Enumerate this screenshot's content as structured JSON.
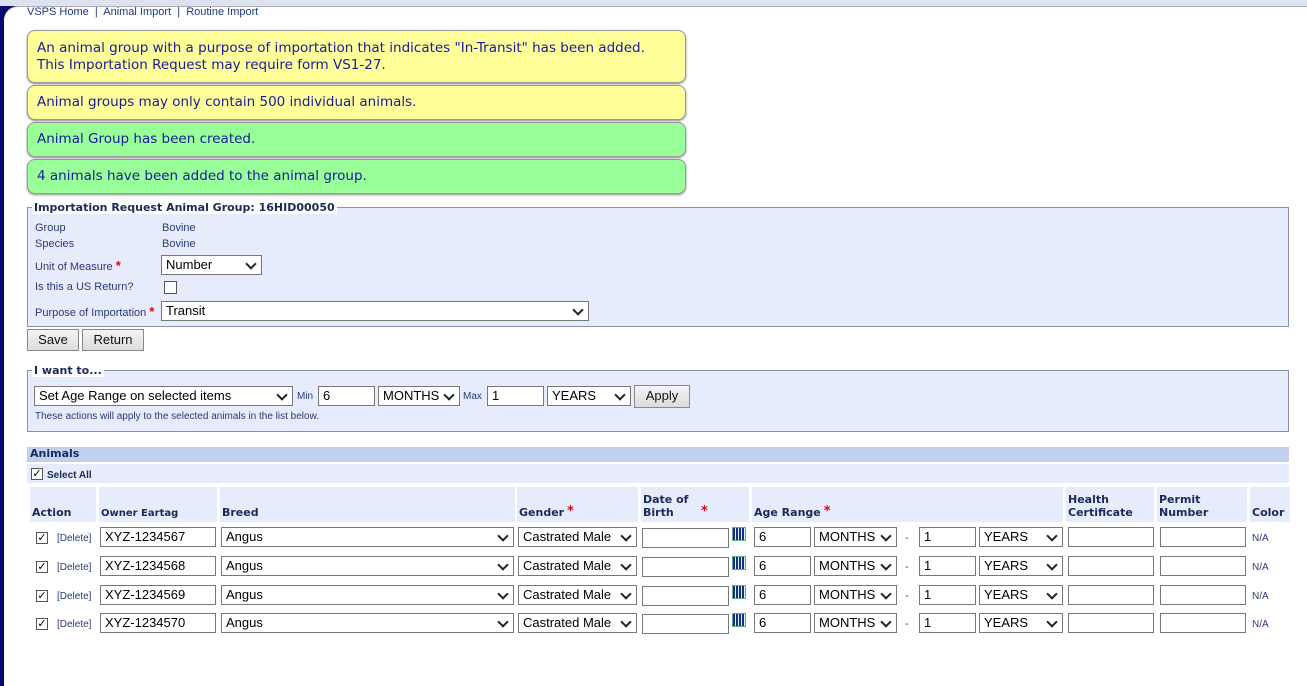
{
  "breadcrumb": [
    "VSPS Home",
    "Animal Import",
    "Routine Import"
  ],
  "messages": [
    {
      "type": "warning",
      "lines": [
        "An animal group with a purpose of importation that indicates \"In-Transit\" has been added.",
        "This Importation Request may require form VS1-27."
      ]
    },
    {
      "type": "warning",
      "lines": [
        "Animal groups may only contain 500 individual animals."
      ]
    },
    {
      "type": "success",
      "lines": [
        "Animal Group has been created."
      ]
    },
    {
      "type": "success",
      "lines": [
        "4 animals have been added to the animal group."
      ]
    }
  ],
  "group": {
    "legend": "Importation Request Animal Group: 16HID00050",
    "group_label": "Group",
    "group_value": "Bovine",
    "species_label": "Species",
    "species_value": "Bovine",
    "unit_label": "Unit of Measure",
    "unit_value": "Number",
    "us_return_label": "Is this a US Return?",
    "us_return_checked": false,
    "purpose_label": "Purpose of Importation",
    "purpose_value": "Transit"
  },
  "buttons": {
    "save": "Save",
    "return": "Return",
    "apply": "Apply"
  },
  "actions": {
    "legend": "I want to...",
    "action_value": "Set Age Range on selected items",
    "min_label": "Min",
    "min_value": "6",
    "min_unit": "MONTHS",
    "max_label": "Max",
    "max_value": "1",
    "max_unit": "YEARS",
    "note": "These actions will apply to the selected animals in the list below."
  },
  "animals": {
    "title": "Animals",
    "select_all": "Select All",
    "columns": [
      "Action",
      "Owner Eartag",
      "Breed",
      "Gender",
      "Date of Birth",
      "Age Range",
      "Health Certificate",
      "Permit Number",
      "Color"
    ],
    "delete_label": "[Delete]",
    "rows": [
      {
        "checked": true,
        "eartag": "XYZ-1234567",
        "breed": "Angus",
        "gender": "Castrated Male",
        "dob": "",
        "min": "6",
        "min_unit": "MONTHS",
        "max": "1",
        "max_unit": "YEARS",
        "health": "",
        "permit": "",
        "color": "N/A"
      },
      {
        "checked": true,
        "eartag": "XYZ-1234568",
        "breed": "Angus",
        "gender": "Castrated Male",
        "dob": "",
        "min": "6",
        "min_unit": "MONTHS",
        "max": "1",
        "max_unit": "YEARS",
        "health": "",
        "permit": "",
        "color": "N/A"
      },
      {
        "checked": true,
        "eartag": "XYZ-1234569",
        "breed": "Angus",
        "gender": "Castrated Male",
        "dob": "",
        "min": "6",
        "min_unit": "MONTHS",
        "max": "1",
        "max_unit": "YEARS",
        "health": "",
        "permit": "",
        "color": "N/A"
      },
      {
        "checked": true,
        "eartag": "XYZ-1234570",
        "breed": "Angus",
        "gender": "Castrated Male",
        "dob": "",
        "min": "6",
        "min_unit": "MONTHS",
        "max": "1",
        "max_unit": "YEARS",
        "health": "",
        "permit": "",
        "color": "N/A"
      }
    ]
  },
  "colors": {
    "warning": "#ffff99",
    "success": "#99ff99",
    "panel": "#e6ecfb",
    "header": "#c0d0ee"
  }
}
